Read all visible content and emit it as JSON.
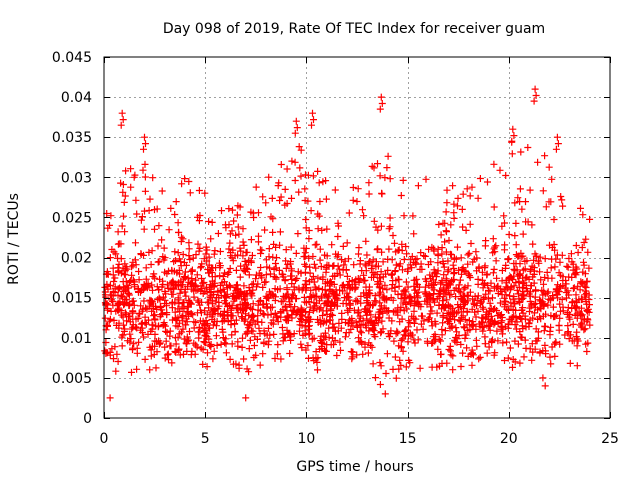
{
  "chart_data": {
    "type": "scatter",
    "title": "Day 098 of 2019, Rate Of TEC Index for receiver guam",
    "xlabel": "GPS time / hours",
    "ylabel": "ROTI / TECUs",
    "xlim": [
      0,
      25
    ],
    "ylim": [
      0,
      0.045
    ],
    "xticks": [
      "0",
      "5",
      "10",
      "15",
      "20",
      "25"
    ],
    "xtick_values": [
      0,
      5,
      10,
      15,
      20,
      25
    ],
    "yticks": [
      "0",
      "0.005",
      "0.01",
      "0.015",
      "0.02",
      "0.025",
      "0.03",
      "0.035",
      "0.04",
      "0.045"
    ],
    "ytick_values": [
      0,
      0.005,
      0.01,
      0.015,
      0.02,
      0.025,
      0.03,
      0.035,
      0.04,
      0.045
    ],
    "grid": true,
    "marker": "plus",
    "marker_color": "#ff0000",
    "x_data_range": [
      0,
      24
    ],
    "typical_range": [
      0.007,
      0.022
    ],
    "envelope": {
      "x": [
        0,
        1,
        2,
        3,
        4,
        5,
        6,
        7,
        8,
        9,
        10,
        11,
        12,
        13,
        14,
        15,
        16,
        17,
        18,
        19,
        20,
        21,
        22,
        23,
        24
      ],
      "low": [
        0.005,
        0.006,
        0.005,
        0.005,
        0.006,
        0.006,
        0.006,
        0.005,
        0.006,
        0.006,
        0.006,
        0.006,
        0.006,
        0.004,
        0.004,
        0.005,
        0.005,
        0.006,
        0.006,
        0.006,
        0.006,
        0.005,
        0.005,
        0.006,
        0.007
      ],
      "high": [
        0.025,
        0.032,
        0.032,
        0.028,
        0.03,
        0.028,
        0.026,
        0.027,
        0.031,
        0.034,
        0.034,
        0.03,
        0.027,
        0.033,
        0.033,
        0.03,
        0.03,
        0.029,
        0.029,
        0.032,
        0.035,
        0.036,
        0.032,
        0.028,
        0.025
      ]
    },
    "peaks": [
      {
        "x": 0.9,
        "y": 0.038
      },
      {
        "x": 2.0,
        "y": 0.035
      },
      {
        "x": 9.5,
        "y": 0.037
      },
      {
        "x": 10.3,
        "y": 0.038
      },
      {
        "x": 13.7,
        "y": 0.04
      },
      {
        "x": 20.2,
        "y": 0.036
      },
      {
        "x": 21.3,
        "y": 0.041
      },
      {
        "x": 22.4,
        "y": 0.035
      }
    ]
  }
}
